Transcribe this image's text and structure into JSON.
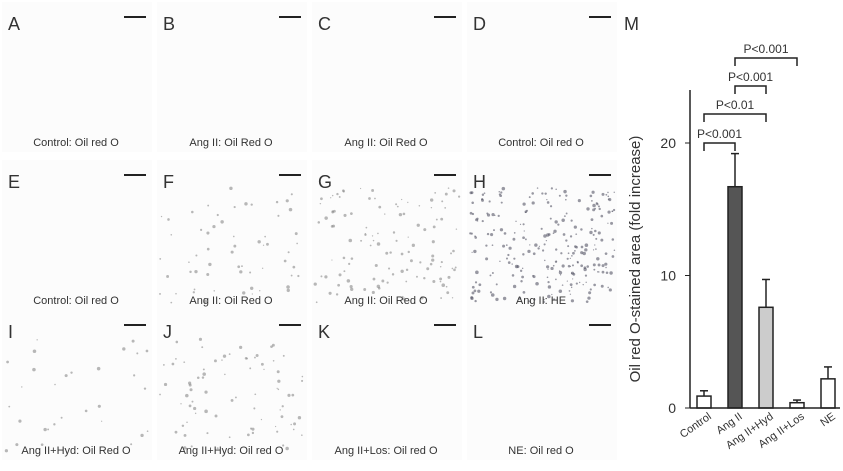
{
  "panels": [
    {
      "letter": "A",
      "caption": "Control: Oil red O"
    },
    {
      "letter": "B",
      "caption": "Ang II: Oil Red O"
    },
    {
      "letter": "C",
      "caption": "Ang II: Oil Red O"
    },
    {
      "letter": "D",
      "caption": "Control: Oil red O"
    },
    {
      "letter": "E",
      "caption": "Control: Oil red O"
    },
    {
      "letter": "F",
      "caption": "Ang II: Oil Red O"
    },
    {
      "letter": "G",
      "caption": "Ang II: Oil Red O"
    },
    {
      "letter": "H",
      "caption": "Ang II: HE"
    },
    {
      "letter": "I",
      "caption": "Ang II+Hyd: Oil Red O"
    },
    {
      "letter": "J",
      "caption": "Ang II+Hyd: Oil red O"
    },
    {
      "letter": "K",
      "caption": "Ang II+Los: Oil red O"
    },
    {
      "letter": "L",
      "caption": "NE: Oil red O"
    }
  ],
  "chart_data": {
    "type": "bar",
    "panel_label": "M",
    "y_label": "Oil red O-stained area (fold increase)",
    "categories": [
      "Control",
      "Ang II",
      "Ang II+Hyd",
      "Ang II+Los",
      "NE"
    ],
    "values": [
      0.9,
      16.7,
      7.6,
      0.4,
      2.2
    ],
    "errors": [
      0.4,
      2.5,
      2.1,
      0.2,
      0.9
    ],
    "colors": [
      "#ffffff",
      "#555555",
      "#cccccc",
      "#ffffff",
      "#ffffff"
    ],
    "ylim": [
      0,
      24
    ],
    "yticks": [
      0,
      10,
      20
    ],
    "comparisons": [
      {
        "label": "P<0.001",
        "from": 0,
        "to": 1
      },
      {
        "label": "P<0.01",
        "from": 0,
        "to": 2
      },
      {
        "label": "P<0.001",
        "from": 1,
        "to": 2
      },
      {
        "label": "P<0.001",
        "from": 1,
        "to": 3
      }
    ]
  }
}
